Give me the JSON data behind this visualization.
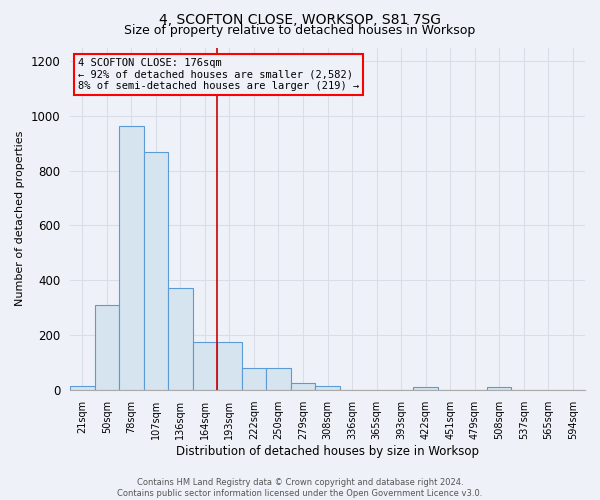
{
  "title": "4, SCOFTON CLOSE, WORKSOP, S81 7SG",
  "subtitle": "Size of property relative to detached houses in Worksop",
  "xlabel": "Distribution of detached houses by size in Worksop",
  "ylabel": "Number of detached properties",
  "footer_line1": "Contains HM Land Registry data © Crown copyright and database right 2024.",
  "footer_line2": "Contains public sector information licensed under the Open Government Licence v3.0.",
  "categories": [
    "21sqm",
    "50sqm",
    "78sqm",
    "107sqm",
    "136sqm",
    "164sqm",
    "193sqm",
    "222sqm",
    "250sqm",
    "279sqm",
    "308sqm",
    "336sqm",
    "365sqm",
    "393sqm",
    "422sqm",
    "451sqm",
    "479sqm",
    "508sqm",
    "537sqm",
    "565sqm",
    "594sqm"
  ],
  "values": [
    15,
    310,
    965,
    870,
    370,
    175,
    175,
    80,
    80,
    25,
    15,
    0,
    0,
    0,
    10,
    0,
    0,
    10,
    0,
    0,
    0
  ],
  "bar_color": "#d6e4f0",
  "bar_edge_color": "#5b9bd5",
  "ylim": [
    0,
    1250
  ],
  "yticks": [
    0,
    200,
    400,
    600,
    800,
    1000,
    1200
  ],
  "annotation_text": "4 SCOFTON CLOSE: 176sqm\n← 92% of detached houses are smaller (2,582)\n8% of semi-detached houses are larger (219) →",
  "vline_x": 5.5,
  "vline_color": "#cc0000",
  "bg_color": "#eef2f8",
  "grid_color": "#d8dde8",
  "title_fontsize": 10,
  "subtitle_fontsize": 9
}
